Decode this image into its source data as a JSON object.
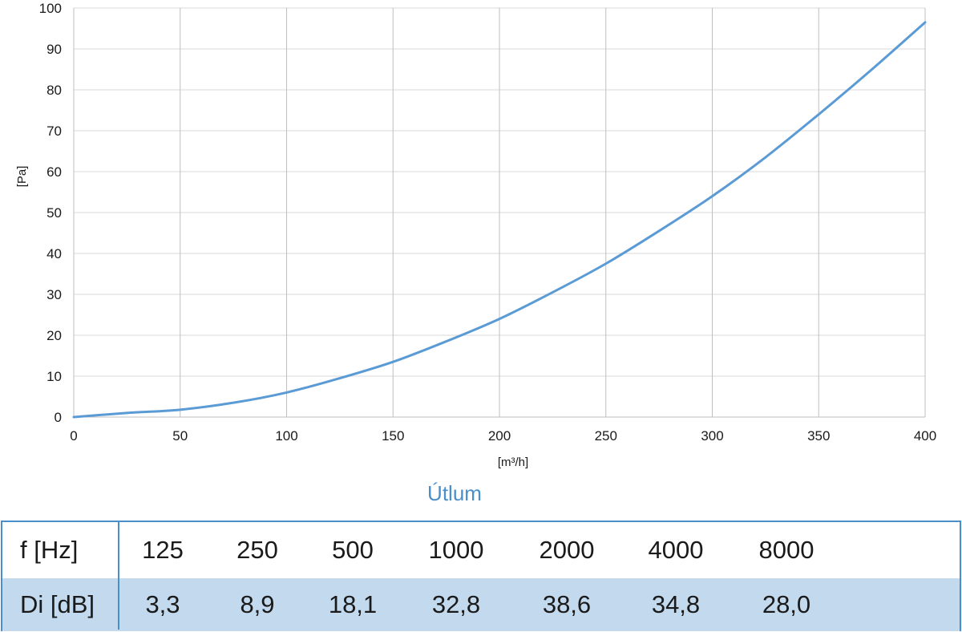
{
  "chart_data": {
    "type": "line",
    "xlabel": "[m³/h]",
    "ylabel": "[Pa]",
    "xlim": [
      0,
      400
    ],
    "ylim": [
      0,
      100
    ],
    "x_ticks": [
      "0",
      "50",
      "100",
      "150",
      "200",
      "250",
      "300",
      "350",
      "400"
    ],
    "y_ticks": [
      "0",
      "10",
      "20",
      "30",
      "40",
      "50",
      "60",
      "70",
      "80",
      "90",
      "100"
    ],
    "grid": true,
    "series": [
      {
        "color": "#5b9bd5",
        "x": [
          0,
          25,
          50,
          75,
          100,
          125,
          150,
          175,
          200,
          225,
          250,
          275,
          300,
          325,
          350,
          375,
          400
        ],
        "y": [
          0,
          1.0,
          1.8,
          3.5,
          6.0,
          9.5,
          13.5,
          18.5,
          24.0,
          30.5,
          37.5,
          45.5,
          54.0,
          63.5,
          74.0,
          85.0,
          96.5
        ]
      }
    ]
  },
  "attenuation": {
    "title": "Útlum",
    "freq_label": "f [Hz]",
    "di_label": "Di [dB]",
    "frequencies": [
      "125",
      "250",
      "500",
      "1000",
      "2000",
      "4000",
      "8000"
    ],
    "di_values": [
      "3,3",
      "8,9",
      "18,1",
      "32,8",
      "38,6",
      "34,8",
      "28,0"
    ],
    "accent_color": "#4a8fcb",
    "row_fill_color": "#c3d9ee"
  }
}
